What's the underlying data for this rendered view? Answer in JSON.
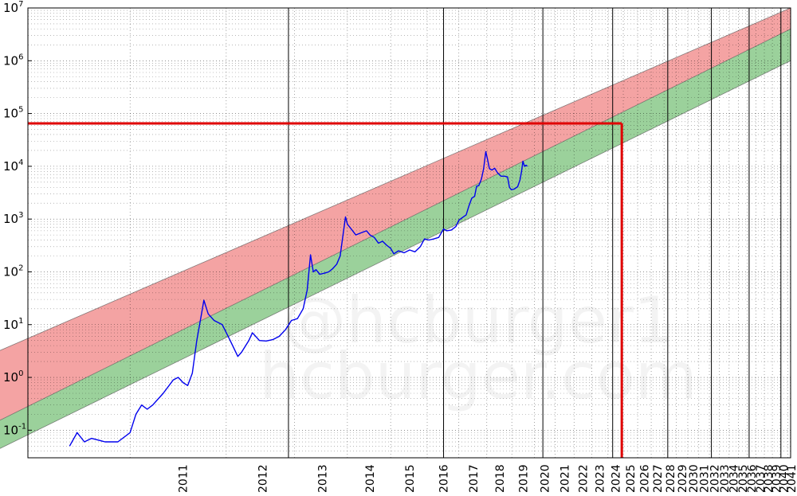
{
  "chart_data": {
    "type": "line",
    "title": "",
    "xlabel": "",
    "ylabel": "",
    "y_scale": "log",
    "x_scale": "log (time since 2009)",
    "ylim": [
      0.03,
      10000000
    ],
    "grid": true,
    "legend": "none",
    "y_ticks": [
      {
        "base": "10",
        "exp": "-1",
        "value": 0.1
      },
      {
        "base": "10",
        "exp": "0",
        "value": 1
      },
      {
        "base": "10",
        "exp": "1",
        "value": 10
      },
      {
        "base": "10",
        "exp": "2",
        "value": 100
      },
      {
        "base": "10",
        "exp": "3",
        "value": 1000
      },
      {
        "base": "10",
        "exp": "4",
        "value": 10000
      },
      {
        "base": "10",
        "exp": "5",
        "value": 100000
      },
      {
        "base": "10",
        "exp": "6",
        "value": 1000000
      },
      {
        "base": "10",
        "exp": "7",
        "value": 10000000
      }
    ],
    "x_ticks": [
      "2011",
      "2012",
      "2013",
      "2014",
      "2015",
      "2016",
      "2017",
      "2018",
      "2019",
      "2020",
      "2021",
      "2022",
      "2023",
      "2024",
      "2025",
      "2026",
      "2027",
      "2028",
      "2029",
      "2030",
      "2031",
      "2032",
      "2033",
      "2034",
      "2035",
      "2036",
      "2037",
      "2038",
      "2039",
      "2040",
      "2041"
    ],
    "halving_years": [
      2012.9,
      2016.5,
      2020.4,
      2024.3,
      2028.3,
      2032.2,
      2036.2,
      2040.1
    ],
    "bands": {
      "upper": {
        "color": "#f4a3a3",
        "start": [
          2010.1,
          2.6
        ],
        "end": [
          2041.4,
          10000000
        ]
      },
      "mid": {
        "color": "#cfe8cf",
        "start": [
          2010.1,
          0.12
        ],
        "end": [
          2041.4,
          4000000
        ]
      },
      "lower": {
        "color": "#9bd19b",
        "start": [
          2010.1,
          0.035
        ],
        "end": [
          2041.4,
          1000000
        ]
      }
    },
    "marker": {
      "color": "#e00000",
      "x": 2024.9,
      "y": 65000
    },
    "watermark": [
      "@hcburger1",
      "hcburger.com"
    ],
    "series": [
      {
        "color": "#0000ee",
        "points": [
          [
            2010.55,
            0.05
          ],
          [
            2010.6,
            0.09
          ],
          [
            2010.65,
            0.06
          ],
          [
            2010.7,
            0.07
          ],
          [
            2010.8,
            0.06
          ],
          [
            2010.9,
            0.06
          ],
          [
            2011.0,
            0.09
          ],
          [
            2011.05,
            0.2
          ],
          [
            2011.1,
            0.3
          ],
          [
            2011.15,
            0.25
          ],
          [
            2011.2,
            0.3
          ],
          [
            2011.3,
            0.5
          ],
          [
            2011.4,
            0.9
          ],
          [
            2011.45,
            1.0
          ],
          [
            2011.5,
            0.8
          ],
          [
            2011.55,
            0.7
          ],
          [
            2011.6,
            1.2
          ],
          [
            2011.65,
            5.0
          ],
          [
            2011.7,
            15.0
          ],
          [
            2011.73,
            29.0
          ],
          [
            2011.78,
            16.0
          ],
          [
            2011.85,
            12.0
          ],
          [
            2011.95,
            10.0
          ],
          [
            2012.05,
            5.0
          ],
          [
            2012.15,
            2.5
          ],
          [
            2012.2,
            3.0
          ],
          [
            2012.3,
            5.0
          ],
          [
            2012.35,
            7.0
          ],
          [
            2012.45,
            5.0
          ],
          [
            2012.55,
            4.9
          ],
          [
            2012.65,
            5.2
          ],
          [
            2012.75,
            6.0
          ],
          [
            2012.85,
            8.0
          ],
          [
            2012.95,
            12.0
          ],
          [
            2013.05,
            13.0
          ],
          [
            2013.15,
            20.0
          ],
          [
            2013.22,
            45.0
          ],
          [
            2013.28,
            210.0
          ],
          [
            2013.33,
            100.0
          ],
          [
            2013.38,
            110.0
          ],
          [
            2013.45,
            90.0
          ],
          [
            2013.55,
            95.0
          ],
          [
            2013.62,
            100.0
          ],
          [
            2013.7,
            115.0
          ],
          [
            2013.78,
            140.0
          ],
          [
            2013.85,
            200.0
          ],
          [
            2013.92,
            600.0
          ],
          [
            2013.96,
            1100.0
          ],
          [
            2014.0,
            800.0
          ],
          [
            2014.08,
            650.0
          ],
          [
            2014.18,
            500.0
          ],
          [
            2014.3,
            550.0
          ],
          [
            2014.42,
            600.0
          ],
          [
            2014.5,
            500.0
          ],
          [
            2014.6,
            450.0
          ],
          [
            2014.7,
            350.0
          ],
          [
            2014.8,
            380.0
          ],
          [
            2014.9,
            320.0
          ],
          [
            2015.0,
            280.0
          ],
          [
            2015.08,
            220.0
          ],
          [
            2015.2,
            250.0
          ],
          [
            2015.35,
            230.0
          ],
          [
            2015.5,
            260.0
          ],
          [
            2015.65,
            240.0
          ],
          [
            2015.8,
            300.0
          ],
          [
            2015.92,
            420.0
          ],
          [
            2016.05,
            400.0
          ],
          [
            2016.2,
            420.0
          ],
          [
            2016.35,
            450.0
          ],
          [
            2016.5,
            650.0
          ],
          [
            2016.6,
            600.0
          ],
          [
            2016.75,
            620.0
          ],
          [
            2016.9,
            720.0
          ],
          [
            2017.0,
            950.0
          ],
          [
            2017.1,
            1050.0
          ],
          [
            2017.25,
            1200.0
          ],
          [
            2017.35,
            1800.0
          ],
          [
            2017.45,
            2500.0
          ],
          [
            2017.55,
            2700.0
          ],
          [
            2017.62,
            4200.0
          ],
          [
            2017.7,
            4300.0
          ],
          [
            2017.8,
            5800.0
          ],
          [
            2017.88,
            9000.0
          ],
          [
            2017.96,
            19000.0
          ],
          [
            2018.02,
            14000.0
          ],
          [
            2018.1,
            9000.0
          ],
          [
            2018.2,
            8500.0
          ],
          [
            2018.3,
            9200.0
          ],
          [
            2018.42,
            7500.0
          ],
          [
            2018.55,
            6500.0
          ],
          [
            2018.7,
            6500.0
          ],
          [
            2018.82,
            6300.0
          ],
          [
            2018.9,
            4000.0
          ],
          [
            2018.98,
            3600.0
          ],
          [
            2019.1,
            3700.0
          ],
          [
            2019.25,
            4100.0
          ],
          [
            2019.35,
            5500.0
          ],
          [
            2019.42,
            8000.0
          ],
          [
            2019.48,
            12500.0
          ],
          [
            2019.55,
            10000.0
          ],
          [
            2019.62,
            10500.0
          ],
          [
            2019.68,
            10000.0
          ]
        ]
      }
    ]
  }
}
